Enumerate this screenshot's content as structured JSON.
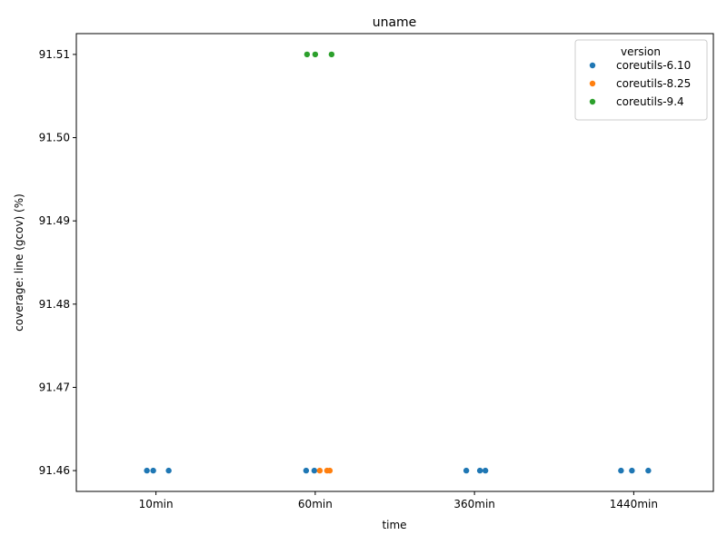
{
  "chart_data": {
    "type": "scatter",
    "title": "uname",
    "xlabel": "time",
    "ylabel": "coverage: line (gcov) (%)",
    "categories": [
      "10min",
      "60min",
      "360min",
      "1440min"
    ],
    "ylim": [
      91.4575,
      91.5125
    ],
    "yticks": [
      "91.46",
      "91.47",
      "91.48",
      "91.49",
      "91.50",
      "91.51"
    ],
    "grid": false,
    "legend": {
      "title": "version",
      "placement": "top-right"
    },
    "series": [
      {
        "name": "coreutils-6.10",
        "color": "#1f77b4",
        "points": [
          {
            "x": "10min",
            "y": 91.46
          },
          {
            "x": "10min",
            "y": 91.46
          },
          {
            "x": "10min",
            "y": 91.46
          },
          {
            "x": "60min",
            "y": 91.46
          },
          {
            "x": "60min",
            "y": 91.46
          },
          {
            "x": "360min",
            "y": 91.46
          },
          {
            "x": "360min",
            "y": 91.46
          },
          {
            "x": "360min",
            "y": 91.46
          },
          {
            "x": "1440min",
            "y": 91.46
          },
          {
            "x": "1440min",
            "y": 91.46
          },
          {
            "x": "1440min",
            "y": 91.46
          }
        ]
      },
      {
        "name": "coreutils-8.25",
        "color": "#ff7f0e",
        "points": [
          {
            "x": "60min",
            "y": 91.46
          },
          {
            "x": "60min",
            "y": 91.46
          },
          {
            "x": "60min",
            "y": 91.46
          }
        ]
      },
      {
        "name": "coreutils-9.4",
        "color": "#2ca02c",
        "points": [
          {
            "x": "60min",
            "y": 91.51
          },
          {
            "x": "60min",
            "y": 91.51
          },
          {
            "x": "60min",
            "y": 91.51
          }
        ]
      }
    ]
  }
}
